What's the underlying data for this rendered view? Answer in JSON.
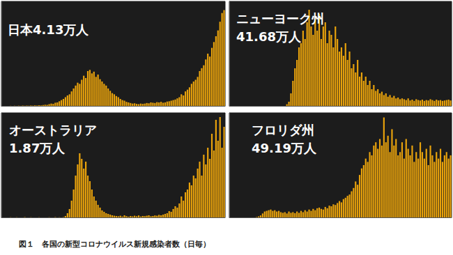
{
  "caption": "図１　各国の新型コロナウイルス新規感染者数（日毎）",
  "chart_data": [
    {
      "type": "bar",
      "title": "日本4.13万人",
      "color": "#e8a20c",
      "grid": false,
      "tick_labels": false,
      "ylim": [
        0,
        1800
      ],
      "values": [
        0,
        0,
        1,
        0,
        2,
        0,
        3,
        1,
        4,
        2,
        5,
        3,
        6,
        4,
        8,
        5,
        10,
        7,
        12,
        9,
        15,
        20,
        18,
        30,
        40,
        35,
        55,
        60,
        80,
        100,
        120,
        150,
        180,
        200,
        250,
        300,
        350,
        400,
        380,
        450,
        520,
        480,
        600,
        620,
        560,
        590,
        500,
        540,
        460,
        420,
        380,
        350,
        300,
        260,
        220,
        200,
        170,
        150,
        120,
        100,
        90,
        70,
        60,
        50,
        40,
        45,
        35,
        30,
        40,
        35,
        40,
        50,
        45,
        60,
        55,
        50,
        65,
        60,
        70,
        55,
        60,
        75,
        80,
        90,
        100,
        110,
        130,
        150,
        200,
        180,
        250,
        280,
        320,
        380,
        420,
        450,
        500,
        600,
        650,
        700,
        800,
        900,
        850,
        1000,
        1100,
        1200,
        1300,
        1450,
        1600,
        1650
      ]
    },
    {
      "type": "bar",
      "title": "ニューヨーク州\n41.68万人",
      "color": "#e8a20c",
      "grid": false,
      "tick_labels": false,
      "ylim": [
        0,
        12500
      ],
      "values": [
        0,
        0,
        0,
        0,
        0,
        0,
        0,
        0,
        0,
        0,
        0,
        0,
        0,
        0,
        0,
        0,
        0,
        0,
        0,
        0,
        0,
        0,
        0,
        0,
        0,
        0,
        0,
        0,
        200,
        500,
        1500,
        3000,
        4500,
        5500,
        7000,
        7500,
        9000,
        8000,
        10000,
        11500,
        9500,
        8500,
        10500,
        9000,
        11000,
        8000,
        9500,
        10000,
        7500,
        9000,
        8500,
        7000,
        9500,
        8000,
        6500,
        7000,
        6000,
        7500,
        5500,
        6500,
        4500,
        5000,
        4000,
        5500,
        3500,
        4000,
        3000,
        3500,
        2500,
        3000,
        2000,
        2500,
        1800,
        2000,
        1500,
        1700,
        1300,
        1500,
        1100,
        1300,
        1000,
        1200,
        900,
        1000,
        800,
        900,
        800,
        700,
        900,
        650,
        750,
        600,
        800,
        700,
        650,
        750,
        600,
        700,
        650,
        800,
        700,
        600,
        750,
        650,
        700,
        600,
        650,
        700,
        750,
        650
      ]
    },
    {
      "type": "bar",
      "title": "オーストラリア\n1.87万人",
      "color": "#e8a20c",
      "grid": false,
      "tick_labels": false,
      "ylim": [
        0,
        750
      ],
      "values": [
        0,
        0,
        0,
        0,
        1,
        0,
        0,
        1,
        0,
        0,
        0,
        2,
        0,
        0,
        1,
        0,
        0,
        0,
        1,
        0,
        0,
        0,
        0,
        1,
        0,
        0,
        2,
        0,
        1,
        0,
        2,
        10,
        30,
        60,
        120,
        200,
        300,
        380,
        460,
        420,
        350,
        400,
        300,
        260,
        200,
        150,
        120,
        90,
        70,
        50,
        40,
        30,
        25,
        20,
        15,
        12,
        10,
        8,
        12,
        6,
        15,
        9,
        5,
        10,
        7,
        12,
        8,
        14,
        6,
        10,
        9,
        12,
        15,
        8,
        10,
        14,
        12,
        18,
        15,
        20,
        25,
        30,
        45,
        40,
        60,
        80,
        70,
        100,
        150,
        120,
        180,
        200,
        250,
        230,
        300,
        280,
        350,
        400,
        300,
        450,
        380,
        500,
        420,
        600,
        480,
        700,
        550,
        720,
        500,
        650
      ]
    },
    {
      "type": "bar",
      "title": "フロリダ州\n49.19万人",
      "color": "#e8a20c",
      "grid": false,
      "tick_labels": false,
      "ylim": [
        0,
        16000
      ],
      "values": [
        0,
        0,
        0,
        0,
        0,
        0,
        0,
        0,
        0,
        0,
        0,
        0,
        0,
        50,
        150,
        300,
        600,
        900,
        1000,
        1100,
        1200,
        1000,
        1100,
        900,
        1000,
        800,
        700,
        800,
        600,
        900,
        700,
        800,
        650,
        900,
        700,
        1000,
        800,
        1100,
        900,
        1200,
        1000,
        1300,
        1100,
        1400,
        1500,
        1300,
        1200,
        1600,
        1400,
        1800,
        1700,
        2000,
        1900,
        2200,
        2500,
        2300,
        2800,
        3000,
        3300,
        3500,
        4000,
        4500,
        5500,
        5000,
        6500,
        7500,
        8000,
        9000,
        8500,
        10000,
        9500,
        11000,
        11500,
        10500,
        12000,
        11000,
        15300,
        11500,
        12500,
        10000,
        13500,
        11000,
        12000,
        9500,
        10000,
        11500,
        9000,
        12000,
        10500,
        9500,
        11000,
        8500,
        10000,
        9000,
        11500,
        10000,
        9000,
        10500,
        8000,
        11000,
        9500,
        8500,
        10000,
        9000,
        10500,
        8500,
        9500,
        10000,
        9000,
        9500
      ]
    }
  ]
}
